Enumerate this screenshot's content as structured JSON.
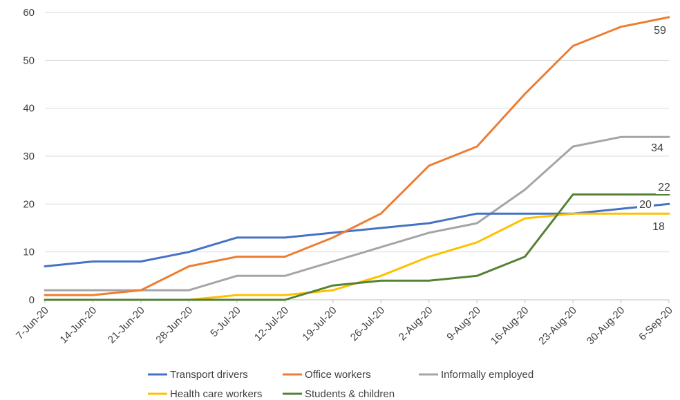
{
  "chart_data": {
    "type": "line",
    "title": "",
    "xlabel": "",
    "ylabel": "",
    "ylim": [
      0,
      60
    ],
    "yticks": [
      0,
      10,
      20,
      30,
      40,
      50,
      60
    ],
    "grid": true,
    "legend_position": "bottom",
    "categories": [
      "7-Jun-20",
      "14-Jun-20",
      "21-Jun-20",
      "28-Jun-20",
      "5-Jul-20",
      "12-Jul-20",
      "19-Jul-20",
      "26-Jul-20",
      "2-Aug-20",
      "9-Aug-20",
      "16-Aug-20",
      "23-Aug-20",
      "30-Aug-20",
      "6-Sep-20"
    ],
    "series": [
      {
        "name": "Transport drivers",
        "color": "#4472C4",
        "values": [
          7,
          8,
          8,
          10,
          13,
          13,
          14,
          15,
          16,
          18,
          18,
          18,
          19,
          20
        ],
        "end_label": "20"
      },
      {
        "name": "Office workers",
        "color": "#ED7D31",
        "values": [
          1,
          1,
          2,
          7,
          9,
          9,
          13,
          18,
          28,
          32,
          43,
          53,
          57,
          59
        ],
        "end_label": "59"
      },
      {
        "name": "Informally employed",
        "color": "#A5A5A5",
        "values": [
          2,
          2,
          2,
          2,
          5,
          5,
          8,
          11,
          14,
          16,
          23,
          32,
          34,
          34
        ],
        "end_label": "34"
      },
      {
        "name": "Health care workers",
        "color": "#FFC000",
        "values": [
          0,
          0,
          0,
          0,
          1,
          1,
          2,
          5,
          9,
          12,
          17,
          18,
          18,
          18
        ],
        "end_label": "18"
      },
      {
        "name": "Students & children",
        "color": "#548235",
        "values": [
          0,
          0,
          0,
          0,
          0,
          0,
          3,
          4,
          4,
          5,
          9,
          22,
          22,
          22
        ],
        "end_label": "22"
      }
    ]
  }
}
